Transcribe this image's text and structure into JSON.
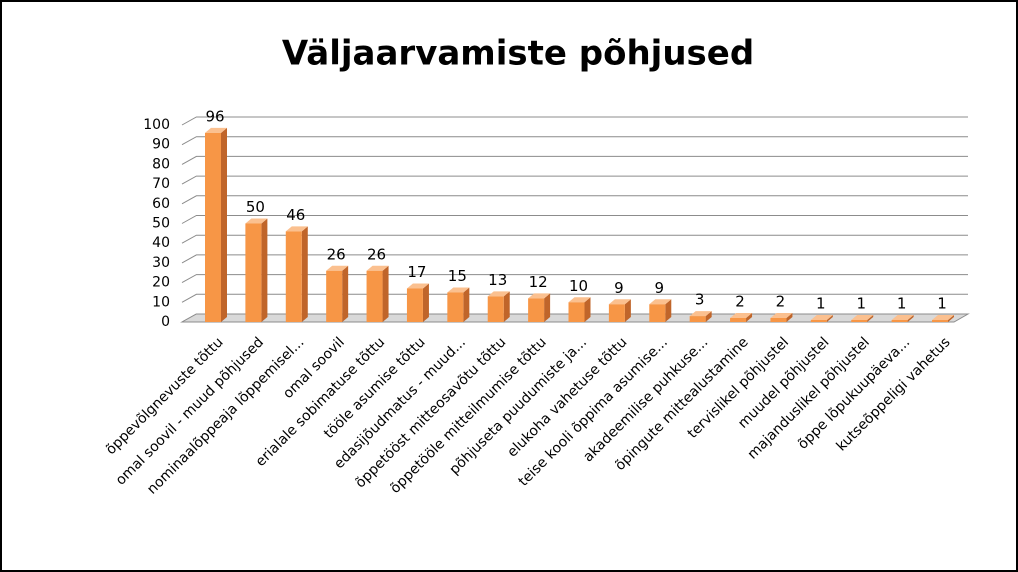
{
  "chart_data": {
    "type": "bar",
    "title": "Väljaarvamiste põhjused",
    "categories": [
      "õppevõlgnevuste tõttu",
      "omal soovil - muud põhjused",
      "nominaalõppeaja lõppemisel...",
      "omal soovil",
      "erialale sobimatuse tõttu",
      "tööle asumise tõttu",
      "edasijõudmatus - muud...",
      "õppetööst mitteosavõtu tõttu",
      "õppetööle mitteilmumise tõttu",
      "põhjuseta puudumiste ja...",
      "elukoha vahetuse tõttu",
      "teise kooli õppima asumise...",
      "akadeemilise puhkuse...",
      "õpingute mittealustamine",
      "tervislikel põhjustel",
      "muudel põhjustel",
      "majanduslikel põhjustel",
      "õppe lõpukuupäeva...",
      "kutseõppeligi vahetus"
    ],
    "values": [
      96,
      50,
      46,
      26,
      26,
      17,
      15,
      13,
      12,
      10,
      9,
      9,
      3,
      2,
      2,
      1,
      1,
      1,
      1
    ],
    "color": "#f79646",
    "ylim": [
      0,
      100
    ],
    "yticks": [
      0,
      10,
      20,
      30,
      40,
      50,
      60,
      70,
      80,
      90,
      100
    ],
    "grid": true
  }
}
